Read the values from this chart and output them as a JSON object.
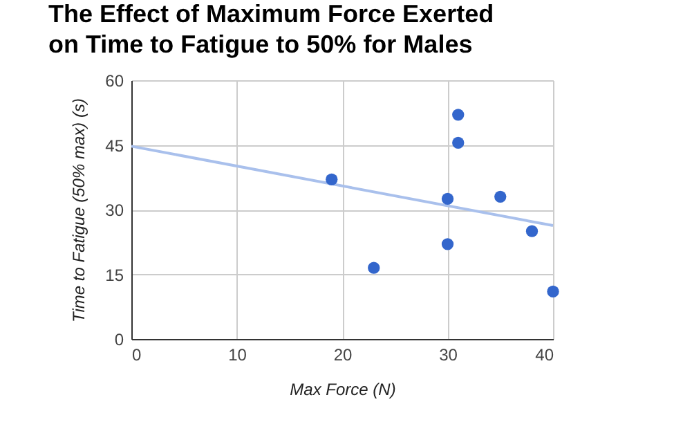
{
  "chart_data": {
    "type": "scatter",
    "title": "The Effect of Maximum Force Exerted\non Time to Fatigue to 50% for Males",
    "xlabel": "Max Force (N)",
    "ylabel": "Time to Fatigue (50% max) (s)",
    "xlim": [
      0,
      40
    ],
    "xticks": [
      0,
      10,
      20,
      30,
      40
    ],
    "ylim": [
      0,
      60
    ],
    "yticks": [
      0,
      15,
      30,
      45,
      60
    ],
    "grid": true,
    "marker": "circle",
    "series": [
      {
        "type": "line",
        "marker": "none",
        "color": "#a9c0ec",
        "x": [
          0,
          40
        ],
        "values": [
          44.7,
          26.3
        ]
      },
      {
        "color": "#3366cc",
        "x": [
          19,
          23,
          30,
          30,
          31,
          31,
          35,
          38,
          40
        ],
        "values": [
          37,
          16.5,
          32.5,
          22,
          52,
          45.5,
          33,
          25,
          11
        ]
      }
    ]
  }
}
